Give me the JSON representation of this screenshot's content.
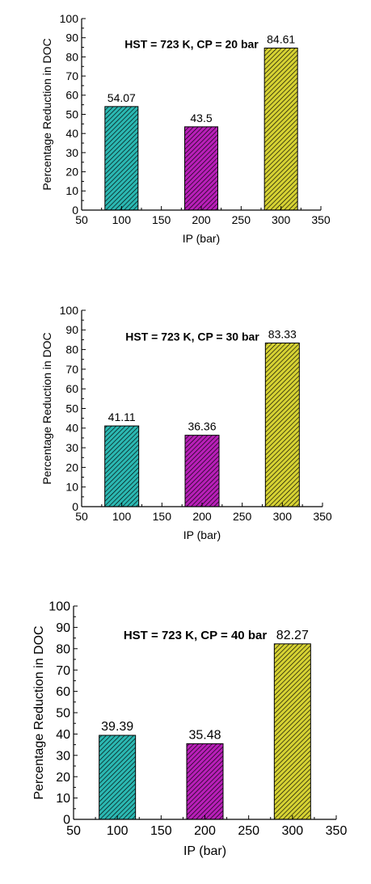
{
  "chart_data": [
    {
      "type": "bar",
      "annotation": "HST = 723 K, CP = 20 bar",
      "xlabel": "IP (bar)",
      "ylabel": "Percentage Reduction in DOC",
      "x": [
        100,
        200,
        300
      ],
      "values": [
        54.07,
        43.5,
        84.61
      ],
      "data_labels": [
        "54.07",
        "43.5",
        "84.61"
      ],
      "bar_colors": [
        "#2bb8b2",
        "#b81fb8",
        "#d6d233"
      ],
      "xlim": [
        50,
        350
      ],
      "ylim": [
        0,
        100
      ],
      "xticks": [
        "50",
        "100",
        "150",
        "200",
        "250",
        "300",
        "350"
      ],
      "yticks": [
        "0",
        "10",
        "20",
        "30",
        "40",
        "50",
        "60",
        "70",
        "80",
        "90",
        "100"
      ],
      "grid": false
    },
    {
      "type": "bar",
      "annotation": "HST = 723 K, CP = 30 bar",
      "xlabel": "IP (bar)",
      "ylabel": "Percentage Reduction in DOC",
      "x": [
        100,
        200,
        300
      ],
      "values": [
        41.11,
        36.36,
        83.33
      ],
      "data_labels": [
        "41.11",
        "36.36",
        "83.33"
      ],
      "bar_colors": [
        "#2bb8b2",
        "#b81fb8",
        "#d6d233"
      ],
      "xlim": [
        50,
        350
      ],
      "ylim": [
        0,
        100
      ],
      "xticks": [
        "50",
        "100",
        "150",
        "200",
        "250",
        "300",
        "350"
      ],
      "yticks": [
        "0",
        "10",
        "20",
        "30",
        "40",
        "50",
        "60",
        "70",
        "80",
        "90",
        "100"
      ],
      "grid": false
    },
    {
      "type": "bar",
      "annotation": "HST = 723 K, CP = 40 bar",
      "xlabel": "IP (bar)",
      "ylabel": "Percentage Reduction in DOC",
      "x": [
        100,
        200,
        300
      ],
      "values": [
        39.39,
        35.48,
        82.27
      ],
      "data_labels": [
        "39.39",
        "35.48",
        "82.27"
      ],
      "bar_colors": [
        "#2bb8b2",
        "#b81fb8",
        "#d6d233"
      ],
      "xlim": [
        50,
        350
      ],
      "ylim": [
        0,
        100
      ],
      "xticks": [
        "50",
        "100",
        "150",
        "200",
        "250",
        "300",
        "350"
      ],
      "yticks": [
        "0",
        "10",
        "20",
        "30",
        "40",
        "50",
        "60",
        "70",
        "80",
        "90",
        "100"
      ],
      "grid": false
    }
  ]
}
